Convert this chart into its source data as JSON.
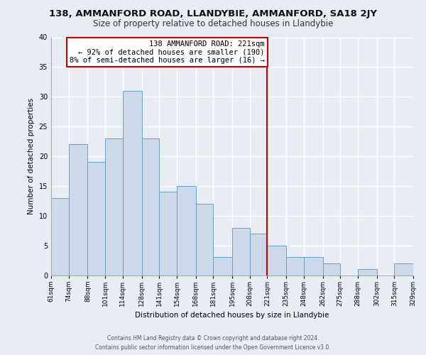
{
  "title": "138, AMMANFORD ROAD, LLANDYBIE, AMMANFORD, SA18 2JY",
  "subtitle": "Size of property relative to detached houses in Llandybie",
  "xlabel": "Distribution of detached houses by size in Llandybie",
  "ylabel": "Number of detached properties",
  "bins": [
    61,
    74,
    88,
    101,
    114,
    128,
    141,
    154,
    168,
    181,
    195,
    208,
    221,
    235,
    248,
    262,
    275,
    288,
    302,
    315,
    329
  ],
  "bin_labels": [
    "61sqm",
    "74sqm",
    "88sqm",
    "101sqm",
    "114sqm",
    "128sqm",
    "141sqm",
    "154sqm",
    "168sqm",
    "181sqm",
    "195sqm",
    "208sqm",
    "221sqm",
    "235sqm",
    "248sqm",
    "262sqm",
    "275sqm",
    "288sqm",
    "302sqm",
    "315sqm",
    "329sqm"
  ],
  "counts": [
    13,
    22,
    19,
    23,
    31,
    23,
    14,
    15,
    12,
    3,
    8,
    7,
    5,
    3,
    3,
    2,
    0,
    1,
    0,
    2
  ],
  "bar_facecolor": "#ccd9e8",
  "bar_edgecolor": "#6a9fc0",
  "vline_x": 221,
  "vline_color": "#cc0000",
  "annotation_title": "138 AMMANFORD ROAD: 221sqm",
  "annotation_line1": "← 92% of detached houses are smaller (190)",
  "annotation_line2": "8% of semi-detached houses are larger (16) →",
  "annotation_box_edgecolor": "#cc0000",
  "annotation_box_facecolor": "#ffffff",
  "ylim": [
    0,
    40
  ],
  "yticks": [
    0,
    5,
    10,
    15,
    20,
    25,
    30,
    35,
    40
  ],
  "bg_color": "#e8edf4",
  "grid_color": "#ffffff",
  "footer_line1": "Contains HM Land Registry data © Crown copyright and database right 2024.",
  "footer_line2": "Contains public sector information licensed under the Open Government Licence v3.0.",
  "title_fontsize": 9.5,
  "subtitle_fontsize": 8.5,
  "axis_fontsize": 7.5,
  "tick_fontsize": 6.5,
  "footer_fontsize": 5.5,
  "annot_fontsize": 7.5
}
